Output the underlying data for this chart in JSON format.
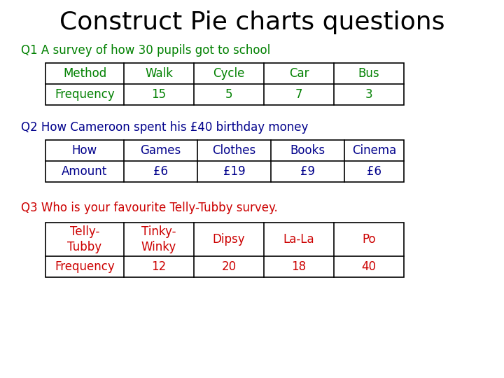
{
  "title": "Construct Pie charts questions",
  "title_fontsize": 26,
  "title_color": "#000000",
  "background_color": "#ffffff",
  "q1_label": "Q1 A survey of how 30 pupils got to school",
  "q1_color": "#008000",
  "q1_headers": [
    "Method",
    "Walk",
    "Cycle",
    "Car",
    "Bus"
  ],
  "q1_row": [
    "Frequency",
    "15",
    "5",
    "7",
    "3"
  ],
  "q1_header_color": "#008000",
  "q1_row_color": "#008000",
  "q2_label": "Q2 How Cameroon spent his £40 birthday money",
  "q2_color": "#00008B",
  "q2_headers": [
    "How",
    "Games",
    "Clothes",
    "Books",
    "Cinema"
  ],
  "q2_row": [
    "Amount",
    "£6",
    "£19",
    "£9",
    "£6"
  ],
  "q2_header_color": "#00008B",
  "q2_row_color": "#00008B",
  "q3_label": "Q3 Who is your favourite Telly-Tubby survey.",
  "q3_color": "#CC0000",
  "q3_headers": [
    "Telly-\nTubby",
    "Tinky-\nWinky",
    "Dipsy",
    "La-La",
    "Po"
  ],
  "q3_row": [
    "Frequency",
    "12",
    "20",
    "18",
    "40"
  ],
  "q3_header_color": "#CC0000",
  "q3_row_color": "#CC0000",
  "table_border_color": "#000000",
  "table_fontsize": 12,
  "q_label_fontsize": 12
}
